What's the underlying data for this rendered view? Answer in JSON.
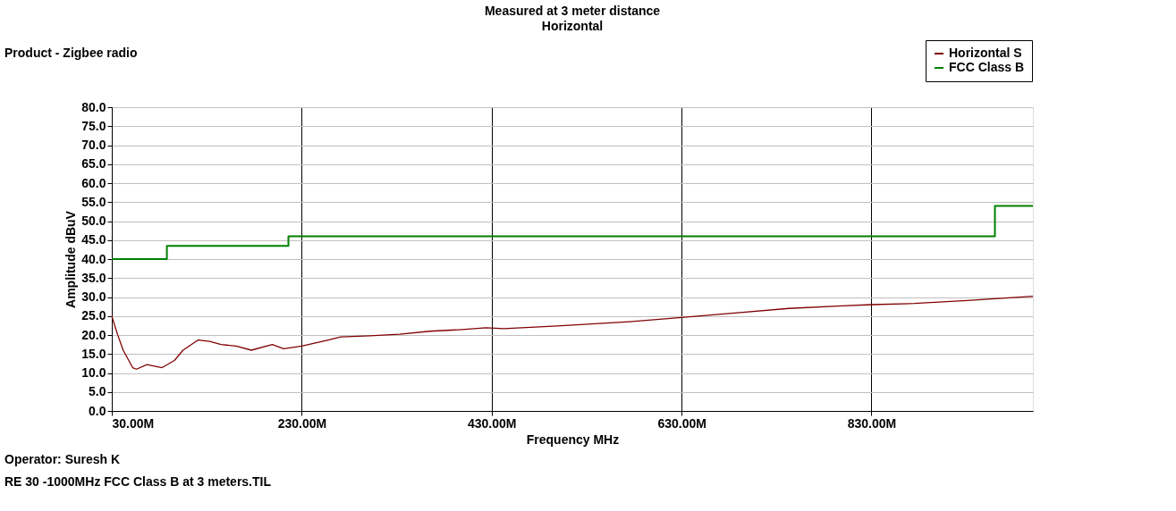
{
  "chart_data": {
    "type": "line",
    "title": "Measured at 3 meter distance",
    "subtitle": "Horizontal",
    "xlabel": "Frequency MHz",
    "ylabel": "Amplitude dBuV",
    "xlim": [
      30,
      1000
    ],
    "ylim": [
      0,
      80
    ],
    "xticks": [
      {
        "value": 30,
        "label": "30.00M"
      },
      {
        "value": 230,
        "label": "230.00M"
      },
      {
        "value": 430,
        "label": "430.00M"
      },
      {
        "value": 630,
        "label": "630.00M"
      },
      {
        "value": 830,
        "label": "830.00M"
      }
    ],
    "yticks": [
      {
        "value": 0,
        "label": "0.0"
      },
      {
        "value": 5,
        "label": "5.0"
      },
      {
        "value": 10,
        "label": "10.0"
      },
      {
        "value": 15,
        "label": "15.0"
      },
      {
        "value": 20,
        "label": "20.0"
      },
      {
        "value": 25,
        "label": "25.0"
      },
      {
        "value": 30,
        "label": "30.0"
      },
      {
        "value": 35,
        "label": "35.0"
      },
      {
        "value": 40,
        "label": "40.0"
      },
      {
        "value": 45,
        "label": "45.0"
      },
      {
        "value": 50,
        "label": "50.0"
      },
      {
        "value": 55,
        "label": "55.0"
      },
      {
        "value": 60,
        "label": "60.0"
      },
      {
        "value": 65,
        "label": "65.0"
      },
      {
        "value": 70,
        "label": "70.0"
      },
      {
        "value": 75,
        "label": "75.0"
      },
      {
        "value": 80,
        "label": "80.0"
      }
    ],
    "grid": true,
    "legend": "top right",
    "series": [
      {
        "name": "Horizontal S",
        "color": "#800000",
        "type": "line",
        "x": [
          30,
          36,
          42,
          52,
          56,
          67,
          83,
          96,
          105,
          121,
          133,
          145,
          161,
          177,
          199,
          211,
          230,
          258,
          271,
          302,
          333,
          365,
          396,
          424,
          443,
          499,
          575,
          630,
          686,
          743,
          799,
          830,
          875,
          931,
          1000
        ],
        "values": [
          25,
          20.2,
          16,
          11.4,
          11,
          12.2,
          11.4,
          13.3,
          16,
          18.7,
          18.3,
          17.5,
          17.1,
          16,
          17.5,
          16.4,
          17.1,
          18.7,
          19.5,
          19.8,
          20.2,
          21,
          21.4,
          21.9,
          21.7,
          22.4,
          23.5,
          24.6,
          25.8,
          27,
          27.7,
          28,
          28.3,
          29.1,
          30.2
        ]
      },
      {
        "name": "FCC Class B",
        "color": "#008000",
        "type": "step",
        "x": [
          30,
          88,
          216,
          960,
          1000
        ],
        "values": [
          40,
          43.5,
          46,
          54,
          54
        ]
      }
    ],
    "annotations": [
      "Product - Zigbee radio",
      "Operator: Suresh K",
      "RE 30 -1000MHz  FCC  Class B  at 3 meters.TIL"
    ]
  }
}
